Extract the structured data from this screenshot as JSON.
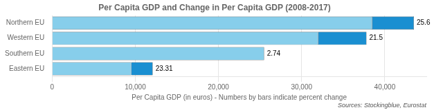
{
  "chart_data": {
    "type": "bar",
    "orientation": "horizontal",
    "stacked": true,
    "title": "Per Capita GDP and Change in Per Capita GDP (2008-2017)",
    "categories": [
      "Northern EU",
      "Western EU",
      "Southern EU",
      "Eastern EU"
    ],
    "series": [
      {
        "color": "#87CEEB",
        "values": [
          38500,
          32000,
          25500,
          9500
        ]
      },
      {
        "color": "#1A8FD1",
        "values": [
          5000,
          5800,
          0,
          2600
        ]
      }
    ],
    "annotations": [
      {
        "category": "Northern EU",
        "text": "25.6"
      },
      {
        "category": "Western EU",
        "text": "21.5"
      },
      {
        "category": "Southern EU",
        "text": "2.74"
      },
      {
        "category": "Eastern EU",
        "text": "23.31"
      }
    ],
    "xlabel": "Per Capita GDP (in euros) - Numbers by bars indicate percent change",
    "source": "Sources: Stockingblue, Eurostat",
    "xlim": [
      0,
      45000
    ],
    "xticks": [
      0,
      {
        "value": 10000,
        "label": "10,000"
      },
      {
        "value": 20000,
        "label": "20,000"
      },
      {
        "value": 30000,
        "label": "30,000"
      },
      {
        "value": 40000,
        "label": "40,000"
      }
    ],
    "grid": true
  }
}
